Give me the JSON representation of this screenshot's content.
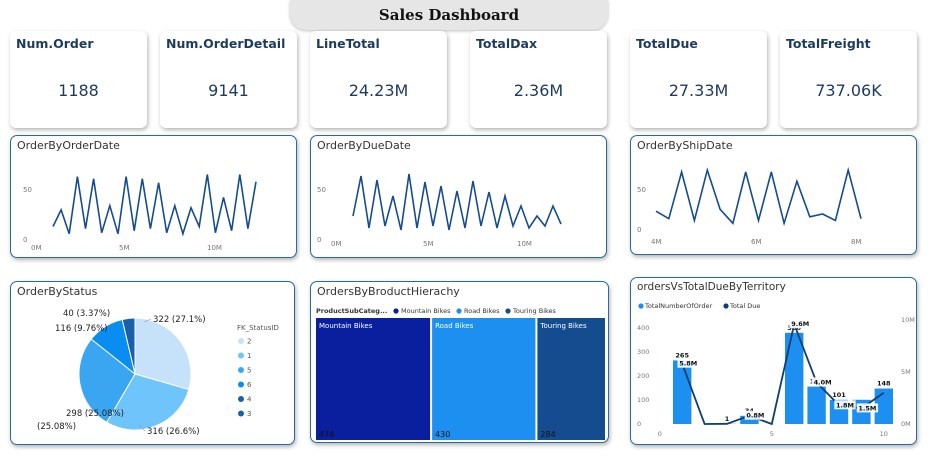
{
  "title": "Sales Dashboard",
  "kpis": [
    {
      "label": "Num.Order",
      "value": "1188"
    },
    {
      "label": "Num.OrderDetail",
      "value": "9141"
    },
    {
      "label": "LineTotal",
      "value": "24.23M"
    },
    {
      "label": "TotalDax",
      "value": "2.36M"
    },
    {
      "label": "TotalDue",
      "value": "27.33M"
    },
    {
      "label": "TotalFreight",
      "value": "737.06K"
    }
  ],
  "charts": {
    "order_date": {
      "title": "OrderByOrderDate",
      "y_ticks": [
        "50",
        "0"
      ],
      "x_ticks": [
        "0M",
        "5M",
        "10M"
      ]
    },
    "due_date": {
      "title": "OrderByDueDate",
      "y_ticks": [
        "50",
        "0"
      ],
      "x_ticks": [
        "0M",
        "5M",
        "10M"
      ]
    },
    "ship_date": {
      "title": "OrderByShipDate",
      "y_ticks": [
        "50",
        "0"
      ],
      "x_ticks": [
        "4M",
        "6M",
        "8M"
      ]
    },
    "status": {
      "title": "OrderByStatus",
      "legend_title": "FK_StatusID",
      "slices": [
        {
          "id": "2",
          "value": 322,
          "label": "322 (27.1%)",
          "color": "#c6e2fb"
        },
        {
          "id": "1",
          "value": 316,
          "label": "316 (26.6%)",
          "color": "#6ec4fb"
        },
        {
          "id": "5",
          "value": 298,
          "label": "298 (25.08%)",
          "color": "#3aa6f2"
        },
        {
          "id": "6",
          "value": 116,
          "label": "116 (9.76%)",
          "color": "#0a8df0"
        },
        {
          "id": "4",
          "value": 40,
          "label": "40 (3.37%)",
          "color": "#1a5faa"
        }
      ],
      "legend": [
        {
          "id": "2",
          "color": "#c6e2fb"
        },
        {
          "id": "1",
          "color": "#6ec4fb"
        },
        {
          "id": "5",
          "color": "#3aa6f2"
        },
        {
          "id": "6",
          "color": "#0a8df0"
        },
        {
          "id": "4",
          "color": "#1a5faa"
        },
        {
          "id": "3",
          "color": "#1a5faa"
        }
      ]
    },
    "hierarchy": {
      "title": "OrdersByBroductHierachy",
      "legend_title": "ProductSubCateg...",
      "legend": [
        {
          "name": "Mountain Bikes",
          "color": "#0a1f9e"
        },
        {
          "name": "Road Bikes",
          "color": "#1c8ff0"
        },
        {
          "name": "Touring Bikes",
          "color": "#154c8f"
        }
      ],
      "tiles": [
        {
          "name": "Mountain Bikes",
          "value": 474,
          "color": "#0a1f9e"
        },
        {
          "name": "Road Bikes",
          "value": 430,
          "color": "#1c8ff0"
        },
        {
          "name": "Touring Bikes",
          "value": 284,
          "color": "#154c8f"
        }
      ]
    },
    "territory": {
      "title": "ordersVsTotalDueByTerritory",
      "legend": [
        {
          "name": "TotalNumberOfOrder",
          "color": "#1c8ff0"
        },
        {
          "name": "Total Due",
          "color": "#103e6e"
        }
      ],
      "y_left": [
        "400",
        "300",
        "200",
        "100",
        "0"
      ],
      "y_right": [
        "10M",
        "5M",
        "0M"
      ],
      "x_ticks": [
        "0",
        "5",
        "10"
      ]
    }
  },
  "chart_data": [
    {
      "type": "line",
      "title": "OrderByOrderDate",
      "y": [
        12,
        28,
        5,
        60,
        10,
        58,
        6,
        32,
        5,
        60,
        8,
        58,
        10,
        54,
        6,
        32,
        5,
        30,
        12,
        62,
        6,
        40,
        8,
        62,
        10,
        55
      ],
      "ylim": [
        0,
        75
      ]
    },
    {
      "type": "line",
      "title": "OrderByDueDate",
      "y": [
        20,
        60,
        8,
        56,
        10,
        40,
        6,
        62,
        8,
        54,
        10,
        50,
        6,
        45,
        8,
        55,
        10,
        44,
        8,
        40,
        10,
        30,
        8,
        20,
        10,
        30,
        12
      ],
      "ylim": [
        0,
        75
      ]
    },
    {
      "type": "line",
      "title": "OrderByShipDate",
      "y": [
        18,
        10,
        60,
        8,
        62,
        20,
        5,
        60,
        8,
        60,
        5,
        50,
        12,
        15,
        8,
        62,
        10
      ],
      "ylim": [
        0,
        75
      ]
    },
    {
      "type": "pie",
      "title": "OrderByStatus",
      "categories": [
        "2",
        "1",
        "5",
        "6",
        "4"
      ],
      "values": [
        322,
        316,
        298,
        116,
        40
      ]
    },
    {
      "type": "treemap",
      "title": "OrdersByBroductHierachy",
      "categories": [
        "Mountain Bikes",
        "Road Bikes",
        "Touring Bikes"
      ],
      "values": [
        474,
        430,
        284
      ]
    },
    {
      "type": "bar",
      "title": "ordersVsTotalDueByTerritory",
      "x": [
        1,
        2,
        3,
        4,
        5,
        6,
        7,
        8,
        9,
        10
      ],
      "series": [
        {
          "name": "TotalNumberOfOrder",
          "values": [
            265,
            0,
            1,
            34,
            0,
            380,
            156,
            101,
            101,
            148
          ]
        },
        {
          "name": "Total Due",
          "values": [
            5.8,
            0,
            0.02,
            0.8,
            0,
            9.6,
            4.0,
            1.8,
            1.5,
            3.0
          ]
        }
      ],
      "data_labels": {
        "bar": [
          "265",
          "",
          "1",
          "34",
          "",
          "380",
          "156",
          "101",
          "",
          "148"
        ],
        "line": [
          "5.8M",
          "",
          "",
          "0.8M",
          "",
          "9.6M",
          "4.0M",
          "1.8M",
          "1.5M",
          ""
        ]
      },
      "ylim_left": [
        0,
        400
      ],
      "ylim_right": [
        0,
        10
      ]
    }
  ]
}
